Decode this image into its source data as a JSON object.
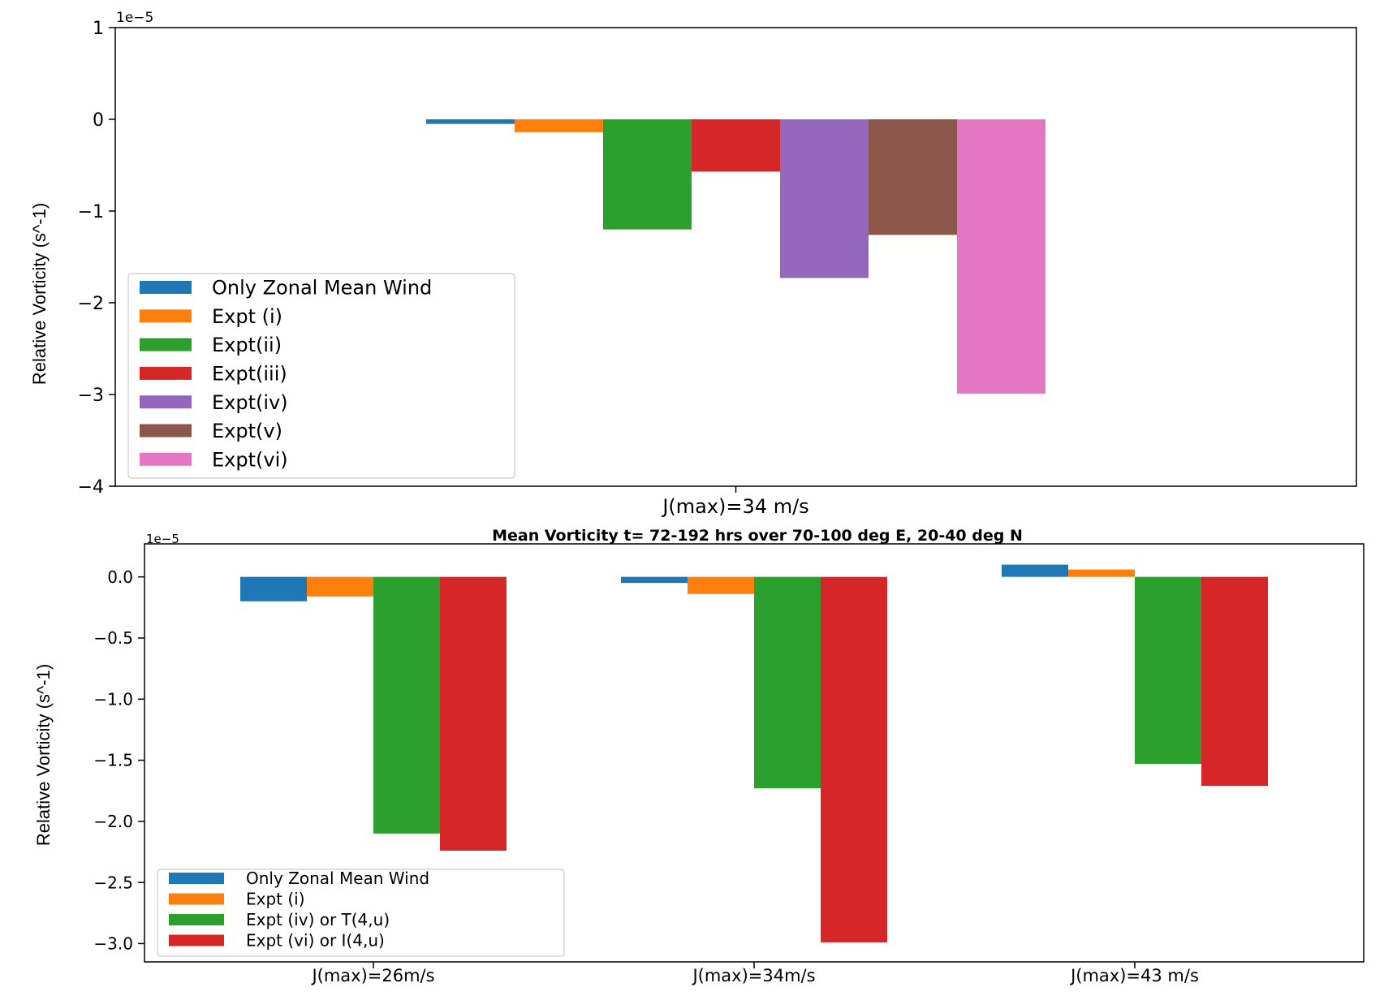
{
  "chart_data": [
    {
      "type": "bar",
      "title": "",
      "scale_label": "1e−5",
      "ylabel": "Relative Vorticity (s^-1)",
      "xlabel": "",
      "categories": [
        "J(max)=34 m/s"
      ],
      "ylim": [
        -4,
        1
      ],
      "yticks": [
        1,
        0,
        -1,
        -2,
        -3,
        -4
      ],
      "ytick_labels": [
        "1",
        "0",
        "−1",
        "−2",
        "−3",
        "−4"
      ],
      "grid": false,
      "legend_position": "lower-left",
      "series": [
        {
          "name": "Only Zonal Mean Wind",
          "color": "#1f77b4",
          "values": [
            -0.05
          ]
        },
        {
          "name": "Expt (i)",
          "color": "#ff7f0e",
          "values": [
            -0.14
          ]
        },
        {
          "name": "Expt(ii)",
          "color": "#2ca02c",
          "values": [
            -1.2
          ]
        },
        {
          "name": "Expt(iii)",
          "color": "#d62728",
          "values": [
            -0.57
          ]
        },
        {
          "name": "Expt(iv)",
          "color": "#9467bd",
          "values": [
            -1.73
          ]
        },
        {
          "name": "Expt(v)",
          "color": "#8c564b",
          "values": [
            -1.26
          ]
        },
        {
          "name": "Expt(vi)",
          "color": "#e377c2",
          "values": [
            -2.99
          ]
        }
      ]
    },
    {
      "type": "bar",
      "title": "Mean Vorticity t= 72-192 hrs over 70-100 deg E, 20-40 deg N",
      "scale_label": "1e−5",
      "ylabel": "Relative Vorticity (s^-1)",
      "xlabel": "",
      "categories": [
        "J(max)=26m/s",
        "J(max)=34m/s",
        "J(max)=43 m/s"
      ],
      "ylim": [
        -3.15,
        0.27
      ],
      "yticks": [
        0.0,
        -0.5,
        -1.0,
        -1.5,
        -2.0,
        -2.5,
        -3.0
      ],
      "ytick_labels": [
        "0.0",
        "−0.5",
        "−1.0",
        "−1.5",
        "−2.0",
        "−2.5",
        "−3.0"
      ],
      "grid": false,
      "legend_position": "lower-left",
      "series": [
        {
          "name": "Only Zonal Mean Wind",
          "color": "#1f77b4",
          "values": [
            -0.2,
            -0.05,
            0.1
          ]
        },
        {
          "name": "Expt (i)",
          "color": "#ff7f0e",
          "values": [
            -0.16,
            -0.14,
            0.06
          ]
        },
        {
          "name": "Expt (iv) or T(4,u)",
          "color": "#2ca02c",
          "values": [
            -2.1,
            -1.73,
            -1.53
          ]
        },
        {
          "name": "Expt (vi) or I(4,u)",
          "color": "#d62728",
          "values": [
            -2.24,
            -2.99,
            -1.71
          ]
        }
      ]
    }
  ]
}
